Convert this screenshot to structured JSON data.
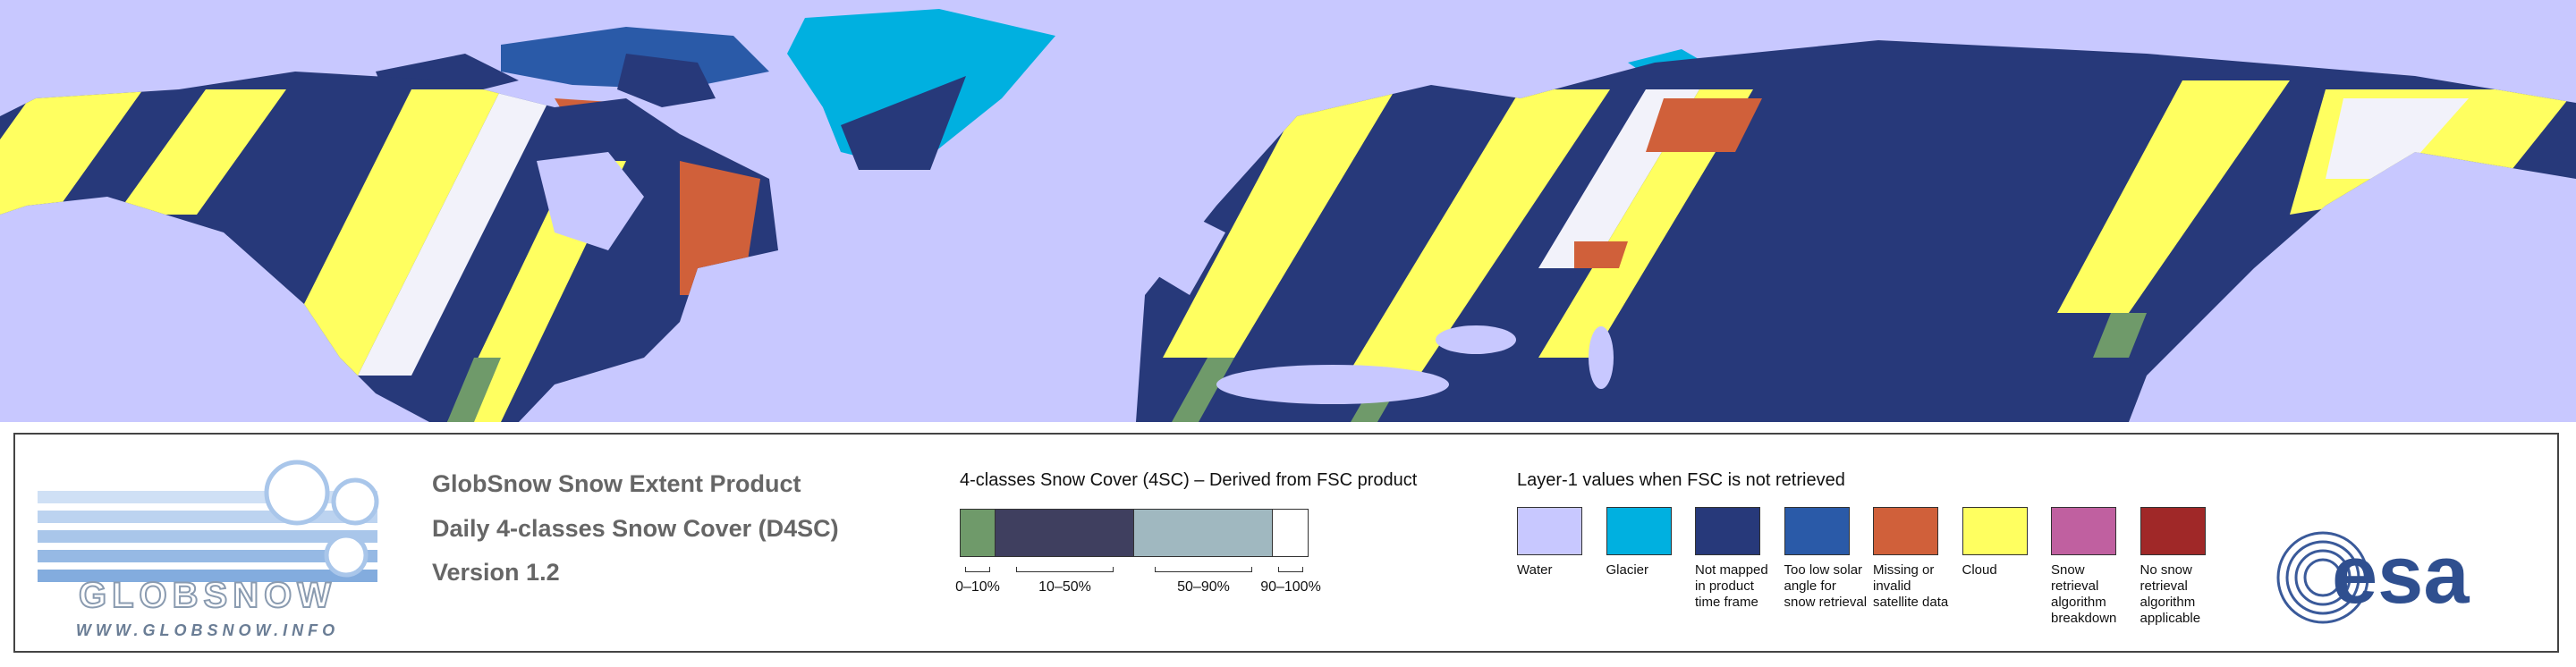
{
  "logo": {
    "name": "GLOBSNOW",
    "url": "WWW.GLOBSNOW.INFO"
  },
  "product": {
    "title": "GlobSnow Snow Extent Product",
    "subtitle": "Daily 4-classes Snow Cover (D4SC)",
    "version": "Version 1.2"
  },
  "snow_cover_legend": {
    "title": "4-classes Snow Cover (4SC) – Derived from FSC product",
    "classes": [
      {
        "label": "0–10%",
        "color": "#6f9a6a"
      },
      {
        "label": "10–50%",
        "color": "#3f3f5f"
      },
      {
        "label": "50–90%",
        "color": "#a0b8c0"
      },
      {
        "label": "90–100%",
        "color": "#ffffff"
      }
    ]
  },
  "layer1_legend": {
    "title": "Layer-1 values when FSC is not retrieved",
    "items": [
      {
        "label": "Water",
        "color": "#c8c8ff"
      },
      {
        "label": "Glacier",
        "color": "#00b0e0"
      },
      {
        "label": "Not mapped in product time frame",
        "color": "#27397a"
      },
      {
        "label": "Too low solar angle for snow retrieval",
        "color": "#2a5aa8"
      },
      {
        "label": "Missing or invalid satellite data",
        "color": "#d0603a"
      },
      {
        "label": "Cloud",
        "color": "#ffff60"
      },
      {
        "label": "Snow retrieval algorithm breakdown",
        "color": "#c060a0"
      },
      {
        "label": "No snow retrieval algorithm applicable",
        "color": "#a02828"
      }
    ]
  },
  "esa_logo": "esa"
}
